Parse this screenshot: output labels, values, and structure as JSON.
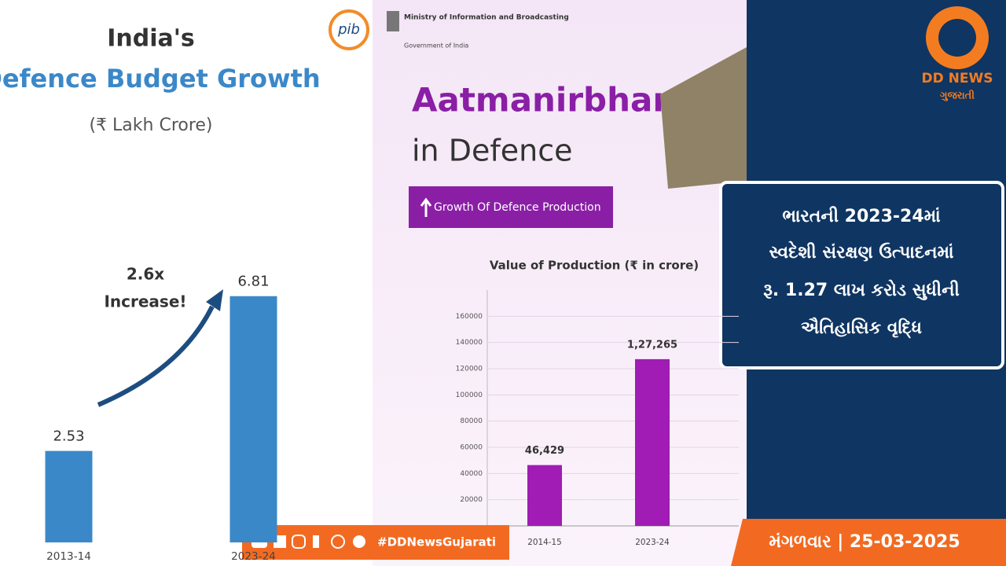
{
  "header": {
    "pib_logo": "pib",
    "ministry": "Ministry of Information and Broadcasting",
    "government": "Government of India",
    "heading": "Aatmanirbharta",
    "subheading": "in Defence",
    "tag": "Growth Of Defence Production"
  },
  "chart_data": [
    {
      "type": "bar",
      "title": "India's",
      "subtitle": "Defence Budget Growth",
      "y_label": "(₹ Lakh Crore)",
      "categories": [
        "2013-14",
        "2023-24"
      ],
      "values": [
        2.53,
        6.81
      ],
      "color": "#3b88c9",
      "annotations": [
        "2.6x",
        "Increase!"
      ],
      "ylim": [
        0,
        9
      ]
    },
    {
      "type": "bar",
      "title": "Value of Production (₹ in crore)",
      "categories": [
        "2014-15",
        "2023-24"
      ],
      "values": [
        46429,
        127265
      ],
      "value_labels": [
        "46,429",
        "1,27,265"
      ],
      "color": "#a01cb4",
      "ylim": [
        0,
        180000
      ],
      "yticks": [
        20000,
        40000,
        60000,
        80000,
        100000,
        120000,
        140000,
        160000
      ]
    }
  ],
  "brand": {
    "name": "DD NEWS",
    "language": "ગુજરાતી"
  },
  "headline": [
    "ભારતની 2023-24માં",
    "સ્વદેશી સંરક્ષણ ઉત્પાદનમાં",
    "રૂ. 1.27 લાખ કરોડ સુધીની",
    "ઐતિહાસિક વૃદ્ધિ"
  ],
  "footer": {
    "hashtag": "#DDNewsGujarati",
    "date": "મંગળવાર | 25-03-2025"
  }
}
